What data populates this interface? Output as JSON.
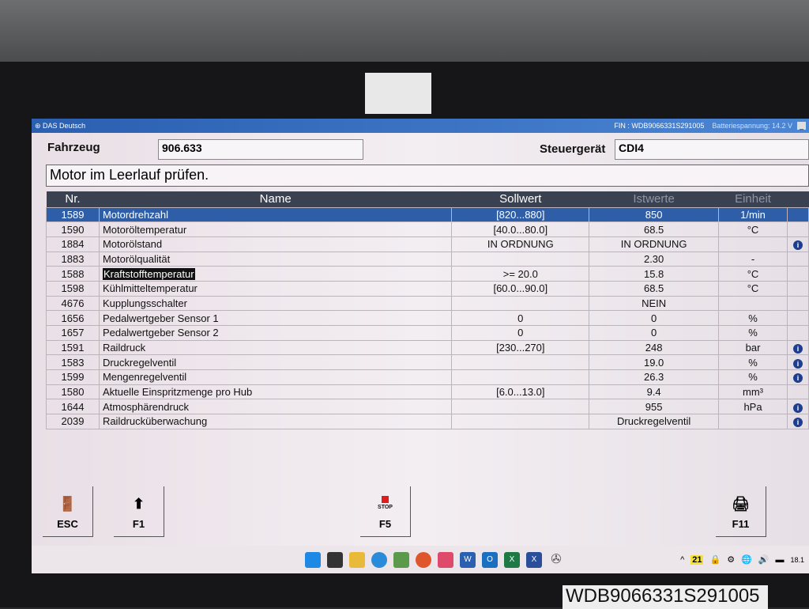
{
  "window": {
    "title": "DAS Deutsch",
    "fin": "FIN : WDB9066331S291005",
    "battery": "Batteriespannung: 14.2 V"
  },
  "header": {
    "fahrzeug_label": "Fahrzeug",
    "fahrzeug_value": "906.633",
    "steuergeraet_label": "Steuergerät",
    "steuergeraet_value": "CDI4"
  },
  "message": "Motor im Leerlauf prüfen.",
  "table": {
    "columns": [
      "Nr.",
      "Name",
      "Sollwert",
      "Istwerte",
      "Einheit"
    ],
    "rows": [
      {
        "nr": "1589",
        "name": "Motordrehzahl",
        "soll": "[820...880]",
        "ist": "850",
        "unit": "1/min",
        "info": false
      },
      {
        "nr": "1590",
        "name": "Motoröltemperatur",
        "soll": "[40.0...80.0]",
        "ist": "68.5",
        "unit": "°C",
        "info": false
      },
      {
        "nr": "1884",
        "name": "Motorölstand",
        "soll": "IN ORDNUNG",
        "ist": "IN ORDNUNG",
        "unit": "",
        "info": true
      },
      {
        "nr": "1883",
        "name": "Motorölqualität",
        "soll": "",
        "ist": "2.30",
        "unit": "-",
        "info": false
      },
      {
        "nr": "1588",
        "name": "Kraftstofftemperatur",
        "soll": ">= 20.0",
        "ist": "15.8",
        "unit": "°C",
        "info": false
      },
      {
        "nr": "1598",
        "name": "Kühlmitteltemperatur",
        "soll": "[60.0...90.0]",
        "ist": "68.5",
        "unit": "°C",
        "info": false
      },
      {
        "nr": "4676",
        "name": "Kupplungsschalter",
        "soll": "",
        "ist": "NEIN",
        "unit": "",
        "info": false
      },
      {
        "nr": "1656",
        "name": "Pedalwertgeber Sensor 1",
        "soll": "0",
        "ist": "0",
        "unit": "%",
        "info": false
      },
      {
        "nr": "1657",
        "name": "Pedalwertgeber Sensor 2",
        "soll": "0",
        "ist": "0",
        "unit": "%",
        "info": false
      },
      {
        "nr": "1591",
        "name": "Raildruck",
        "soll": "[230...270]",
        "ist": "248",
        "unit": "bar",
        "info": true
      },
      {
        "nr": "1583",
        "name": "Druckregelventil",
        "soll": "",
        "ist": "19.0",
        "unit": "%",
        "info": true
      },
      {
        "nr": "1599",
        "name": "Mengenregelventil",
        "soll": "",
        "ist": "26.3",
        "unit": "%",
        "info": true
      },
      {
        "nr": "1580",
        "name": "Aktuelle Einspritzmenge pro Hub",
        "soll": "[6.0...13.0]",
        "ist": "9.4",
        "unit": "mm³",
        "info": false
      },
      {
        "nr": "1644",
        "name": "Atmosphärendruck",
        "soll": "",
        "ist": "955",
        "unit": "hPa",
        "info": true
      },
      {
        "nr": "2039",
        "name": "Raildrucküberwachung",
        "soll": "",
        "ist": "Druckregelventil",
        "unit": "",
        "info": true
      }
    ]
  },
  "buttons": {
    "esc": "ESC",
    "f1": "F1",
    "f5": "F5",
    "stop": "STOP",
    "f11": "F11"
  },
  "taskbar": {
    "badge": "21",
    "clock": "18.1"
  },
  "sticker": "WDB9066331S291005"
}
